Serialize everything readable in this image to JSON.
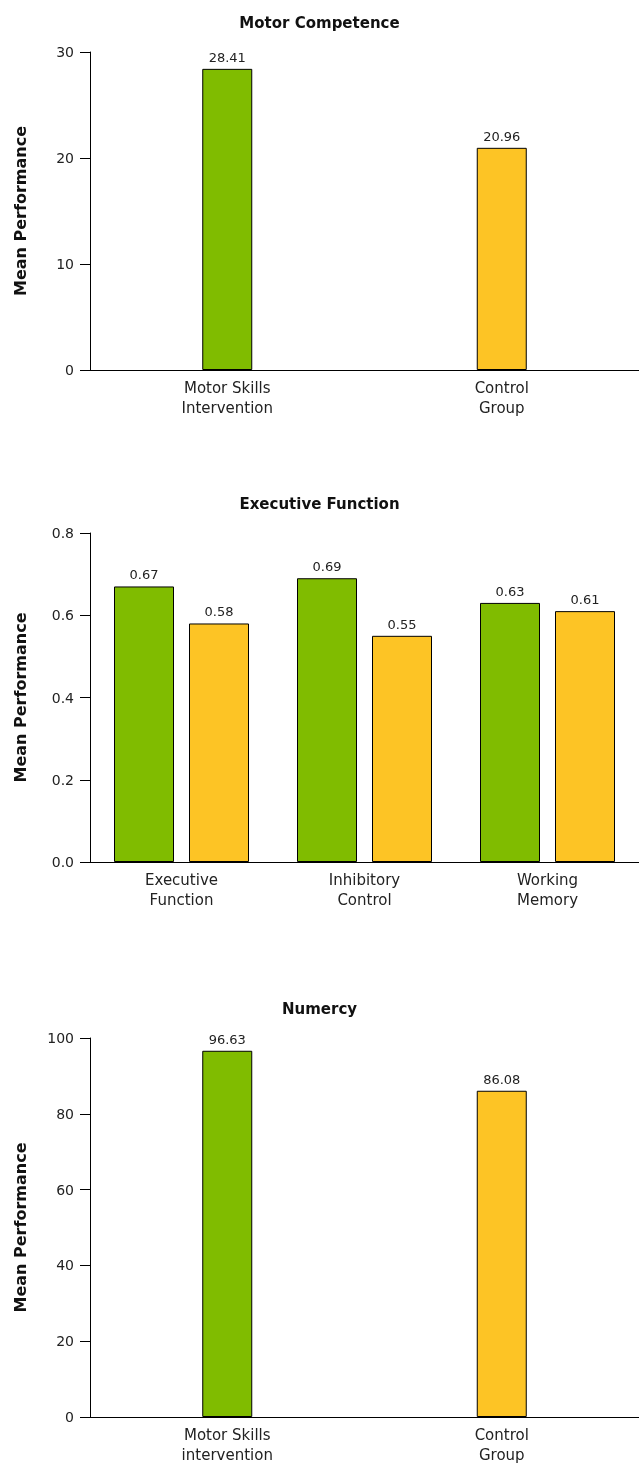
{
  "chart_data": [
    {
      "type": "bar",
      "title": "Motor Competence",
      "ylabel": "Mean Performance",
      "categories": [
        "Motor Skills\nIntervention",
        "Control\nGroup"
      ],
      "values": [
        28.41,
        20.96
      ],
      "colors": [
        "#80bc00",
        "#fdc425"
      ],
      "ylim": [
        0,
        30
      ],
      "yticks": [
        0,
        10,
        20,
        30
      ],
      "data_labels": true,
      "grid": false
    },
    {
      "type": "bar",
      "title": "Executive Function",
      "ylabel": "Mean Performance",
      "categories": [
        "Executive\nFunction",
        "Inhibitory\nControl",
        "Working\nMemory"
      ],
      "series": [
        {
          "color": "#80bc00",
          "values": [
            0.67,
            0.69,
            0.63
          ]
        },
        {
          "color": "#fdc425",
          "values": [
            0.58,
            0.55,
            0.61
          ]
        }
      ],
      "ylim": [
        0,
        0.8
      ],
      "yticks": [
        {
          "value": 0,
          "label": "0.0"
        },
        0.2,
        0.4,
        0.6,
        0.8
      ],
      "data_labels": true,
      "grid": false
    },
    {
      "type": "bar",
      "title": "Numercy",
      "ylabel": "Mean Performance",
      "categories": [
        "Motor Skills\nintervention",
        "Control\nGroup"
      ],
      "values": [
        96.63,
        86.08
      ],
      "colors": [
        "#80bc00",
        "#fdc425"
      ],
      "ylim": [
        0,
        100
      ],
      "yticks": [
        0,
        20,
        40,
        60,
        80,
        100
      ],
      "data_labels": true,
      "grid": false
    }
  ]
}
